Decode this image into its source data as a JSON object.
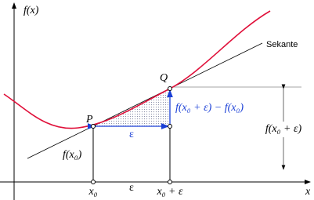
{
  "labels": {
    "y_axis": "f(x)",
    "x_axis": "x",
    "secant": "Sekante",
    "point_p": "P",
    "point_q": "Q",
    "f_x0": "f(x₀)",
    "x0": "x₀",
    "epsilon_axis": "ε",
    "x0_eps": "x₀ + ε",
    "epsilon_blue": "ε",
    "difference": "f(x₀ + ε) − f(x₀)",
    "f_x0_eps": "f(x₀ + ε)"
  }
}
